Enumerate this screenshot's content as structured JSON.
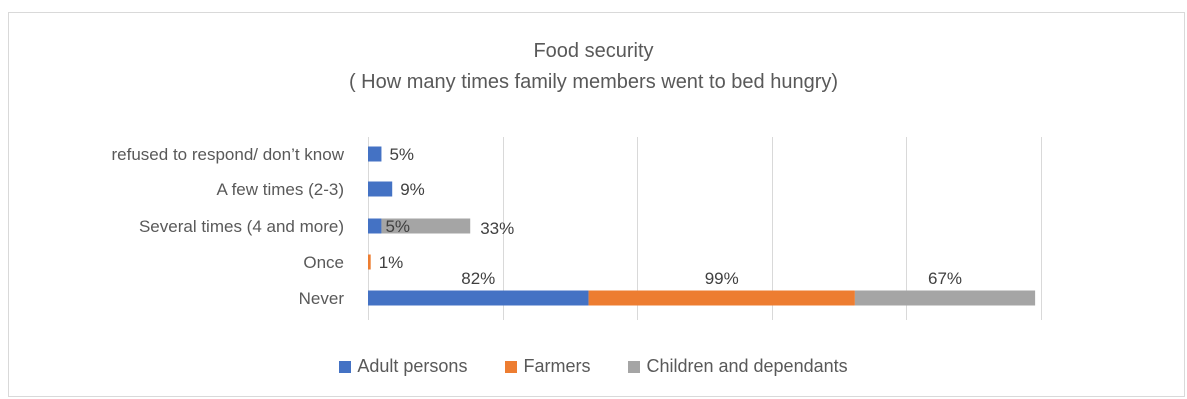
{
  "chart_data": {
    "type": "bar",
    "orientation": "horizontal",
    "stacked": true,
    "title": "Food security",
    "subtitle": "( How many times family members went to bed hungry)",
    "categories": [
      "refused to respond/ don’t know",
      "A few times (2-3)",
      "Several times (4 and more)",
      "Once",
      "Never"
    ],
    "series": [
      {
        "name": "Adult persons",
        "color": "#4472c4",
        "values": [
          5,
          9,
          5,
          0,
          82
        ],
        "labels": [
          "5%",
          "9%",
          "5%",
          "",
          "82%"
        ]
      },
      {
        "name": "Farmers",
        "color": "#ed7d31",
        "values": [
          0,
          0,
          0,
          1,
          99
        ],
        "labels": [
          "",
          "",
          "",
          "1%",
          "99%"
        ]
      },
      {
        "name": "Children and dependants",
        "color": "#a5a5a5",
        "values": [
          0,
          0,
          33,
          0,
          67
        ],
        "labels": [
          "",
          "",
          "33%",
          "",
          "67%"
        ]
      }
    ],
    "xlim": [
      0,
      300
    ],
    "grid": true,
    "legend_position": "bottom"
  }
}
